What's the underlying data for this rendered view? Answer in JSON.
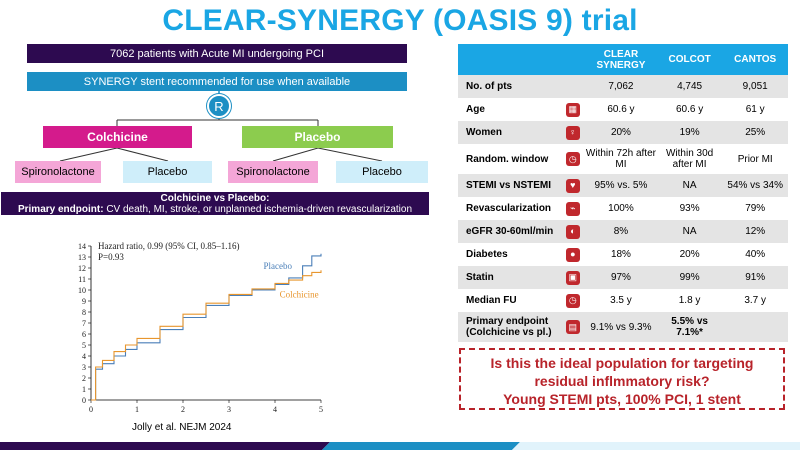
{
  "title": "CLEAR-SYNERGY (OASIS 9) trial",
  "flow": {
    "patients": "7062 patients with Acute MI undergoing PCI",
    "stent": "SYNERGY stent recommended for use when available",
    "randomization": "R",
    "arm_colchicine": "Colchicine",
    "arm_placebo": "Placebo",
    "sub_spiro_1": "Spironolactone",
    "sub_placebo_1": "Placebo",
    "sub_spiro_2": "Spironolactone",
    "sub_placebo_2": "Placebo",
    "endpoint_title": "Colchicine vs Placebo:",
    "endpoint_label": "Primary endpoint:",
    "endpoint_text": " CV death, MI, stroke, or unplanned ischemia-driven revascularization"
  },
  "chart_data": {
    "type": "line",
    "annotations": [
      "Hazard ratio, 0.99 (95% CI, 0.85–1.16)",
      "P=0.93"
    ],
    "x_ticks": [
      "0",
      "1",
      "2",
      "3",
      "4",
      "5"
    ],
    "y_ticks": [
      "0",
      "1",
      "2",
      "3",
      "4",
      "5",
      "6",
      "7",
      "8",
      "9",
      "10",
      "11",
      "12",
      "13",
      "14"
    ],
    "xlim": [
      0,
      5
    ],
    "ylim": [
      0,
      14
    ],
    "series": [
      {
        "name": "Placebo",
        "color": "#4a7fb8",
        "x": [
          0,
          0.1,
          0.25,
          0.5,
          0.75,
          1,
          1.5,
          2,
          2.5,
          3,
          3.5,
          4,
          4.3,
          4.6,
          4.8,
          5
        ],
        "y": [
          0,
          2.8,
          3.3,
          4.0,
          4.6,
          5.2,
          6.4,
          7.5,
          8.6,
          9.5,
          10.0,
          10.5,
          11.1,
          12.2,
          13.1,
          13.3
        ]
      },
      {
        "name": "Colchicine",
        "color": "#e8962e",
        "x": [
          0,
          0.1,
          0.25,
          0.5,
          0.75,
          1,
          1.5,
          2,
          2.5,
          3,
          3.5,
          4,
          4.3,
          4.6,
          4.8,
          5
        ],
        "y": [
          0,
          3.0,
          3.6,
          4.4,
          5.0,
          5.6,
          6.7,
          7.8,
          8.8,
          9.6,
          10.1,
          10.6,
          10.9,
          11.3,
          11.6,
          11.8
        ]
      }
    ]
  },
  "citation": "Jolly et al. NEJM 2024",
  "table": {
    "headers": [
      "CLEAR SYNERGY",
      "COLCOT",
      "CANTOS"
    ],
    "rows": [
      {
        "label": "No. of pts",
        "icon": "",
        "values": [
          "7,062",
          "4,745",
          "9,051"
        ]
      },
      {
        "label": "Age",
        "icon": "calendar-icon",
        "glyph": "▦",
        "values": [
          "60.6 y",
          "60.6 y",
          "61 y"
        ]
      },
      {
        "label": "Women",
        "icon": "female-icon",
        "glyph": "♀",
        "values": [
          "20%",
          "19%",
          "25%"
        ]
      },
      {
        "label": "Random. window",
        "icon": "clock-icon",
        "glyph": "◷",
        "values": [
          "Within 72h after MI",
          "Within 30d after MI",
          "Prior MI"
        ]
      },
      {
        "label": "STEMI vs NSTEMI",
        "icon": "heart-icon",
        "glyph": "♥",
        "values": [
          "95% vs. 5%",
          "NA",
          "54% vs 34%"
        ]
      },
      {
        "label": "Revascularization",
        "icon": "stent-icon",
        "glyph": "⌁",
        "values": [
          "100%",
          "93%",
          "79%"
        ]
      },
      {
        "label": "eGFR 30-60ml/min",
        "icon": "kidney-icon",
        "glyph": "◐",
        "values": [
          "8%",
          "NA",
          "12%"
        ]
      },
      {
        "label": "Diabetes",
        "icon": "drop-icon",
        "glyph": "●",
        "values": [
          "18%",
          "20%",
          "40%"
        ]
      },
      {
        "label": "Statin",
        "icon": "pill-bottle-icon",
        "glyph": "▣",
        "values": [
          "97%",
          "99%",
          "91%"
        ]
      },
      {
        "label": "Median FU",
        "icon": "timer-icon",
        "glyph": "◷",
        "values": [
          "3.5 y",
          "1.8 y",
          "3.7 y"
        ]
      },
      {
        "label": "Primary endpoint (Colchicine vs pl.)",
        "icon": "pill-icon",
        "glyph": "▤",
        "values": [
          "9.1% vs 9.3%",
          "5.5% vs 7.1%*",
          ""
        ]
      }
    ]
  },
  "question": {
    "line1": "Is this the ideal population for targeting",
    "line2": "residual inflmmatory risk?",
    "line3": "Young STEMI pts, 100% PCI, 1 stent"
  }
}
